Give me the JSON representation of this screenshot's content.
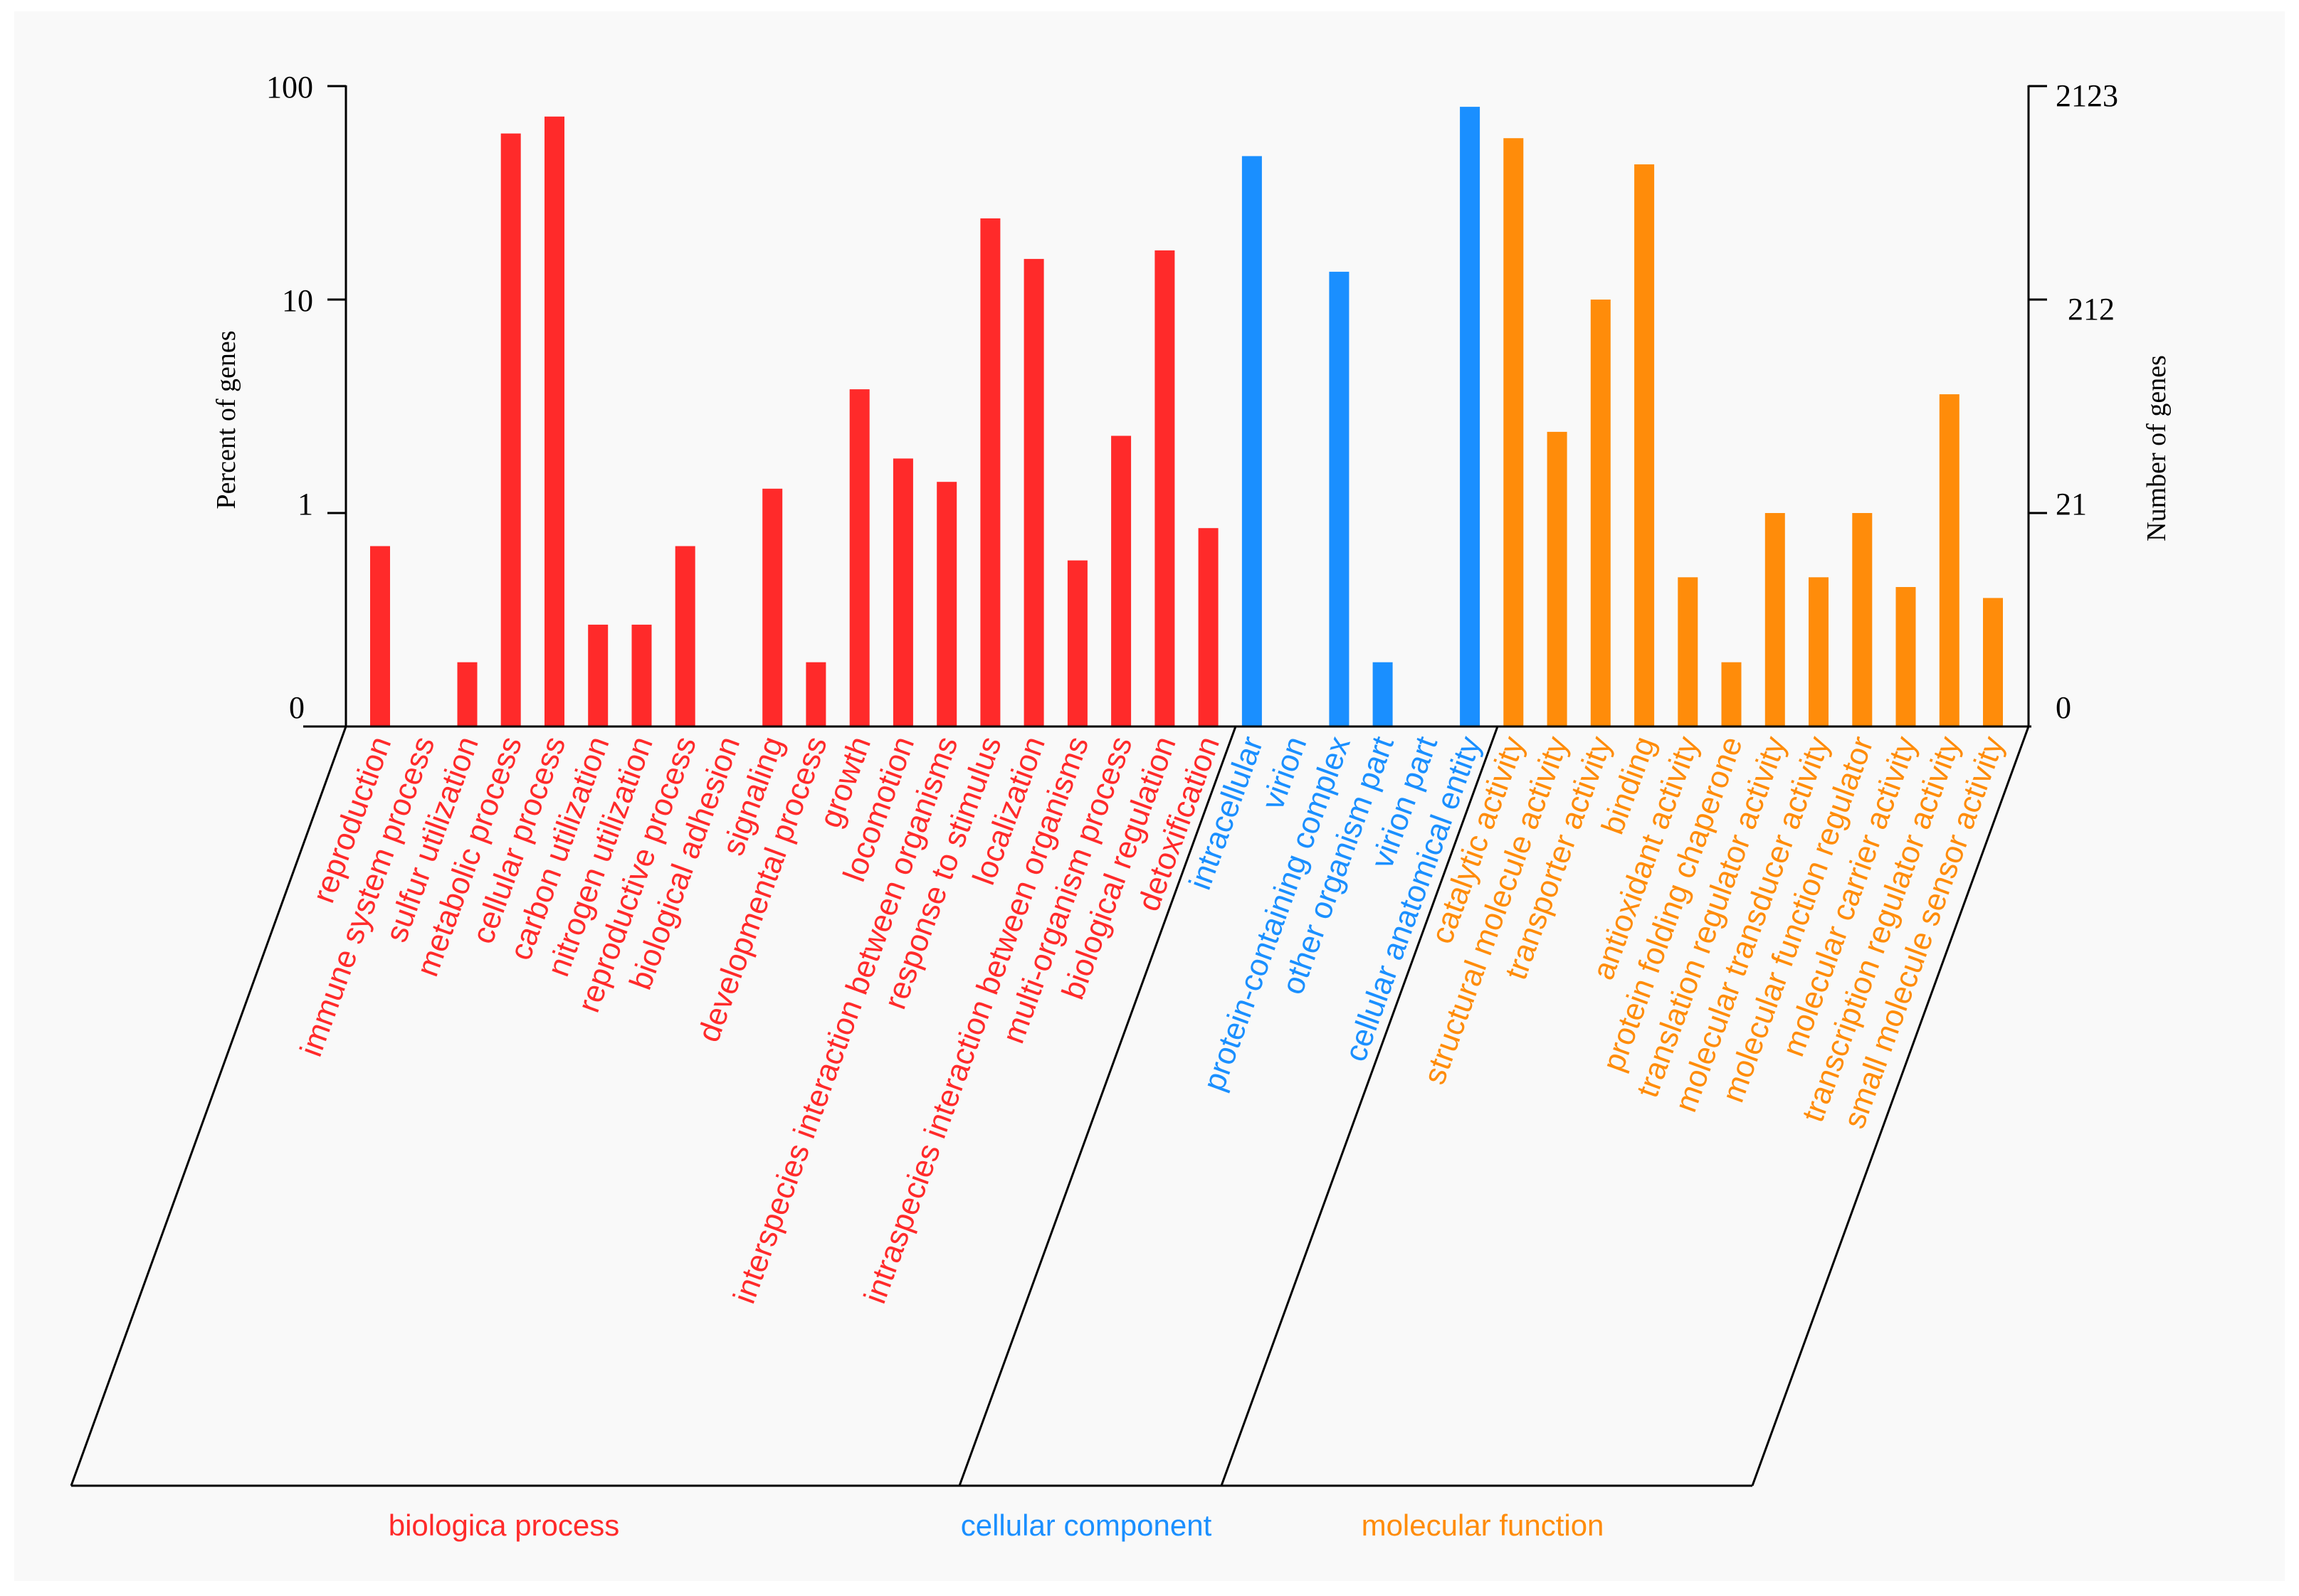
{
  "chart_data": {
    "type": "bar",
    "y_scale": "log",
    "left_axis": {
      "label": "Percent of genes",
      "ticks": [
        {
          "value": 100,
          "label": "100"
        },
        {
          "value": 10,
          "label": "10"
        },
        {
          "value": 1,
          "label": "1"
        },
        {
          "value": 0.1,
          "label": "0"
        }
      ]
    },
    "right_axis": {
      "label": "Number of genes",
      "ticks": [
        {
          "value": 100,
          "label": "2123"
        },
        {
          "value": 10,
          "label": "212"
        },
        {
          "value": 1,
          "label": "21"
        },
        {
          "value": 0.1,
          "label": "0"
        }
      ]
    },
    "ylim": [
      0.1,
      100
    ],
    "groups": [
      {
        "name": "biologica process",
        "color": "#ff2a2a"
      },
      {
        "name": "cellular component",
        "color": "#1a8fff"
      },
      {
        "name": "molecular function",
        "color": "#ff8c0a"
      }
    ],
    "categories": [
      {
        "label": "reproduction",
        "group": 0,
        "value": 0.7
      },
      {
        "label": "immune system process",
        "group": 0,
        "value": null
      },
      {
        "label": "sulfur utilization",
        "group": 0,
        "value": 0.2
      },
      {
        "label": "metabolic process",
        "group": 0,
        "value": 60
      },
      {
        "label": "cellular process",
        "group": 0,
        "value": 72
      },
      {
        "label": "carbon utilization",
        "group": 0,
        "value": 0.3
      },
      {
        "label": "nitrogen utilization",
        "group": 0,
        "value": 0.3
      },
      {
        "label": "reproductive process",
        "group": 0,
        "value": 0.7
      },
      {
        "label": "biological adhesion",
        "group": 0,
        "value": null
      },
      {
        "label": "signaling",
        "group": 0,
        "value": 1.3
      },
      {
        "label": "developmental process",
        "group": 0,
        "value": 0.2
      },
      {
        "label": "growth",
        "group": 0,
        "value": 3.8
      },
      {
        "label": "locomotion",
        "group": 0,
        "value": 1.8
      },
      {
        "label": "interspecies interaction between organisms",
        "group": 0,
        "value": 1.4
      },
      {
        "label": "response to stimulus",
        "group": 0,
        "value": 24
      },
      {
        "label": "localization",
        "group": 0,
        "value": 15.5
      },
      {
        "label": "intraspecies interaction between organisms",
        "group": 0,
        "value": 0.6
      },
      {
        "label": "multi-organism process",
        "group": 0,
        "value": 2.3
      },
      {
        "label": "biological regulation",
        "group": 0,
        "value": 17
      },
      {
        "label": "detoxification",
        "group": 0,
        "value": 0.85
      },
      {
        "label": "intracellular",
        "group": 1,
        "value": 47
      },
      {
        "label": "virion",
        "group": 1,
        "value": null
      },
      {
        "label": "protein-containing complex",
        "group": 1,
        "value": 13.5
      },
      {
        "label": "other organism part",
        "group": 1,
        "value": 0.2
      },
      {
        "label": "virion part",
        "group": 1,
        "value": null
      },
      {
        "label": "cellular anatomical entity",
        "group": 1,
        "value": 80
      },
      {
        "label": "catalytic activity",
        "group": 2,
        "value": 57
      },
      {
        "label": "structural molecule activity",
        "group": 2,
        "value": 2.4
      },
      {
        "label": "transporter activity",
        "group": 2,
        "value": 10
      },
      {
        "label": "binding",
        "group": 2,
        "value": 43
      },
      {
        "label": "antioxidant activity",
        "group": 2,
        "value": 0.5
      },
      {
        "label": "protein folding chaperone",
        "group": 2,
        "value": 0.2
      },
      {
        "label": "translation regulator activity",
        "group": 2,
        "value": 1
      },
      {
        "label": "molecular transducer activity",
        "group": 2,
        "value": 0.5
      },
      {
        "label": "molecular function regulator",
        "group": 2,
        "value": 1
      },
      {
        "label": "molecular carrier activity",
        "group": 2,
        "value": 0.45
      },
      {
        "label": "transcription regulator activity",
        "group": 2,
        "value": 3.6
      },
      {
        "label": "small molecule sensor activity",
        "group": 2,
        "value": 0.4
      }
    ]
  }
}
